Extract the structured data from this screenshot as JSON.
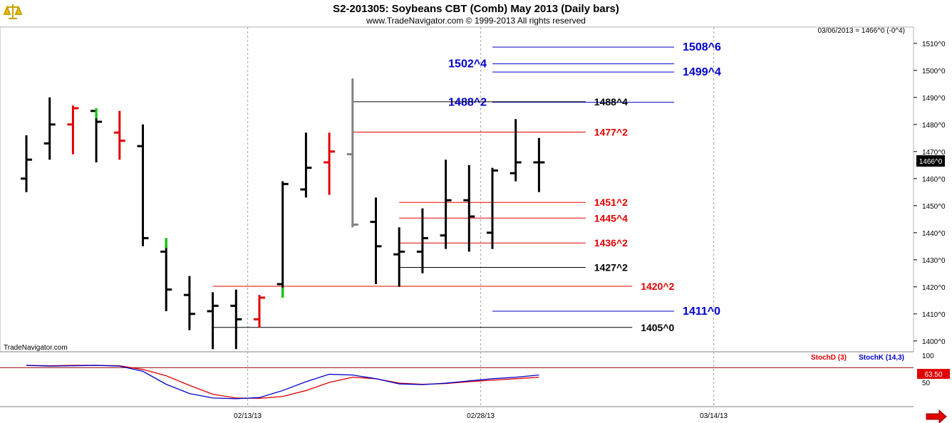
{
  "header": {
    "title": "S2-201305:  Soybeans CBT (Comb) May 2013  (Daily bars)",
    "copyright": "www.TradeNavigator.com © 1999-2013 All rights reserved",
    "quote": "03/06/2013 = 1466^0 (-0^4)",
    "watermark": "TradeNavigator.com",
    "last_price_badge": "1466^0",
    "logo_icon": "scale-icon",
    "scroll_icon": "right-arrow-icon"
  },
  "colors": {
    "up_bar": "#000000",
    "down_bar": "#e00000",
    "gray_bar": "#808080",
    "green": "#00cc00",
    "blue_line": "#0000cc",
    "red_line": "#e00000",
    "black_line": "#000000",
    "stochd": "#e00000",
    "stochk": "#0000cc"
  },
  "chart_data": [
    {
      "type": "ohlc",
      "title": "S2-201305:  Soybeans CBT (Comb) May 2013  (Daily bars)",
      "ylim": [
        1396,
        1516
      ],
      "y_ticks": [
        "1400^0",
        "1410^0",
        "1420^0",
        "1430^0",
        "1440^0",
        "1450^0",
        "1460^0",
        "1470^0",
        "1480^0",
        "1490^0",
        "1500^0",
        "1510^0"
      ],
      "y_tick_values": [
        1400,
        1410,
        1420,
        1430,
        1440,
        1450,
        1460,
        1470,
        1480,
        1490,
        1500,
        1510
      ],
      "x_ticks": [
        "02/13/13",
        "02/28/13",
        "03/14/13"
      ],
      "x_tick_index": [
        9.5,
        19.5,
        29.5
      ],
      "x_range": [
        -0.5,
        36.5
      ],
      "bars": [
        {
          "i": 0,
          "o": 1460,
          "h": 1476,
          "l": 1455,
          "c": 1467,
          "color": "black"
        },
        {
          "i": 1,
          "o": 1473,
          "h": 1490,
          "l": 1467,
          "c": 1480,
          "color": "black"
        },
        {
          "i": 2,
          "o": 1480,
          "h": 1487,
          "l": 1469,
          "c": 1486,
          "color": "red"
        },
        {
          "i": 3,
          "o": 1485,
          "h": 1486,
          "l": 1466,
          "c": 1481,
          "color": "black",
          "wick": "green"
        },
        {
          "i": 4,
          "o": 1477,
          "h": 1485,
          "l": 1467,
          "c": 1474,
          "color": "red"
        },
        {
          "i": 5,
          "o": 1472,
          "h": 1480,
          "l": 1435,
          "c": 1438,
          "color": "black"
        },
        {
          "i": 6,
          "o": 1433,
          "h": 1438,
          "l": 1411,
          "c": 1419,
          "color": "black",
          "wick": "green"
        },
        {
          "i": 7,
          "o": 1417,
          "h": 1424,
          "l": 1404,
          "c": 1410,
          "color": "black"
        },
        {
          "i": 8,
          "o": 1411,
          "h": 1418,
          "l": 1397,
          "c": 1413,
          "color": "black"
        },
        {
          "i": 9,
          "o": 1413,
          "h": 1419,
          "l": 1397,
          "c": 1408,
          "color": "black"
        },
        {
          "i": 10,
          "o": 1408,
          "h": 1417,
          "l": 1405,
          "c": 1416,
          "color": "red"
        },
        {
          "i": 11,
          "o": 1421,
          "h": 1459,
          "l": 1416,
          "c": 1458,
          "color": "black",
          "wick": "green"
        },
        {
          "i": 12,
          "o": 1456,
          "h": 1477,
          "l": 1453,
          "c": 1464,
          "color": "black"
        },
        {
          "i": 13,
          "o": 1466,
          "h": 1477,
          "l": 1454,
          "c": 1470,
          "color": "red"
        },
        {
          "i": 14,
          "o": 1469,
          "h": 1497,
          "l": 1442,
          "c": 1443,
          "color": "gray"
        },
        {
          "i": 15,
          "o": 1444,
          "h": 1453,
          "l": 1421,
          "c": 1435,
          "color": "black"
        },
        {
          "i": 16,
          "o": 1432,
          "h": 1442,
          "l": 1420,
          "c": 1433,
          "color": "black"
        },
        {
          "i": 17,
          "o": 1433,
          "h": 1449,
          "l": 1425,
          "c": 1438,
          "color": "black"
        },
        {
          "i": 18,
          "o": 1439,
          "h": 1467,
          "l": 1434,
          "c": 1452,
          "color": "black"
        },
        {
          "i": 19,
          "o": 1452,
          "h": 1465,
          "l": 1433,
          "c": 1446,
          "color": "black"
        },
        {
          "i": 20,
          "o": 1440,
          "h": 1464,
          "l": 1434,
          "c": 1463,
          "color": "black"
        },
        {
          "i": 21,
          "o": 1462,
          "h": 1482,
          "l": 1459,
          "c": 1466,
          "color": "black"
        },
        {
          "i": 22,
          "o": 1466,
          "h": 1475,
          "l": 1455,
          "c": 1466,
          "color": "black"
        }
      ],
      "levels": [
        {
          "value": 1508.6,
          "label": "1508^6",
          "color": "blue",
          "from": 20,
          "to": 27.8,
          "label_at": "right"
        },
        {
          "value": 1502.4,
          "label": "1502^4",
          "color": "blue",
          "from": 20,
          "to": 27.8,
          "label_at": "left"
        },
        {
          "value": 1499.4,
          "label": "1499^4",
          "color": "blue",
          "from": 20,
          "to": 27.8,
          "label_at": "right"
        },
        {
          "value": 1488.2,
          "label": "1488^2",
          "color": "blue",
          "from": 20,
          "to": 27.8,
          "label_at": "left"
        },
        {
          "value": 1488.4,
          "label": "1488^4",
          "color": "black",
          "from": 14,
          "to": 24,
          "label_at": "right"
        },
        {
          "value": 1477.2,
          "label": "1477^2",
          "color": "red",
          "from": 14,
          "to": 24,
          "label_at": "right"
        },
        {
          "value": 1451.2,
          "label": "1451^2",
          "color": "red",
          "from": 16,
          "to": 24,
          "label_at": "right"
        },
        {
          "value": 1445.4,
          "label": "1445^4",
          "color": "red",
          "from": 16,
          "to": 24,
          "label_at": "right"
        },
        {
          "value": 1436.2,
          "label": "1436^2",
          "color": "red",
          "from": 16,
          "to": 24,
          "label_at": "right"
        },
        {
          "value": 1427.2,
          "label": "1427^2",
          "color": "black",
          "from": 16,
          "to": 24,
          "label_at": "right"
        },
        {
          "value": 1420.2,
          "label": "1420^2",
          "color": "red",
          "from": 8,
          "to": 26,
          "label_at": "right"
        },
        {
          "value": 1411.0,
          "label": "1411^0",
          "color": "blue",
          "from": 20,
          "to": 27.8,
          "label_at": "right"
        },
        {
          "value": 1405.0,
          "label": "1405^0",
          "color": "black",
          "from": 8,
          "to": 26,
          "label_at": "right"
        }
      ]
    },
    {
      "type": "line",
      "legend": [
        "StochD (3)",
        "StochK (14,3)"
      ],
      "ylim": [
        0,
        100
      ],
      "y_ticks": [
        "100",
        "50"
      ],
      "y_tick_values": [
        100,
        50
      ],
      "last_value_badge": "63.50",
      "series": [
        {
          "name": "StochD (3)",
          "color": "red",
          "values": [
            96,
            95,
            96,
            96,
            95,
            85,
            68,
            42,
            18,
            8,
            7,
            12,
            28,
            50,
            64,
            60,
            48,
            45,
            47,
            52,
            56,
            60,
            64
          ]
        },
        {
          "name": "StochK (14,3)",
          "color": "blue",
          "values": [
            96,
            94,
            95,
            96,
            94,
            80,
            45,
            20,
            8,
            6,
            9,
            28,
            52,
            72,
            70,
            60,
            46,
            44,
            48,
            54,
            60,
            64,
            70
          ]
        }
      ]
    }
  ]
}
